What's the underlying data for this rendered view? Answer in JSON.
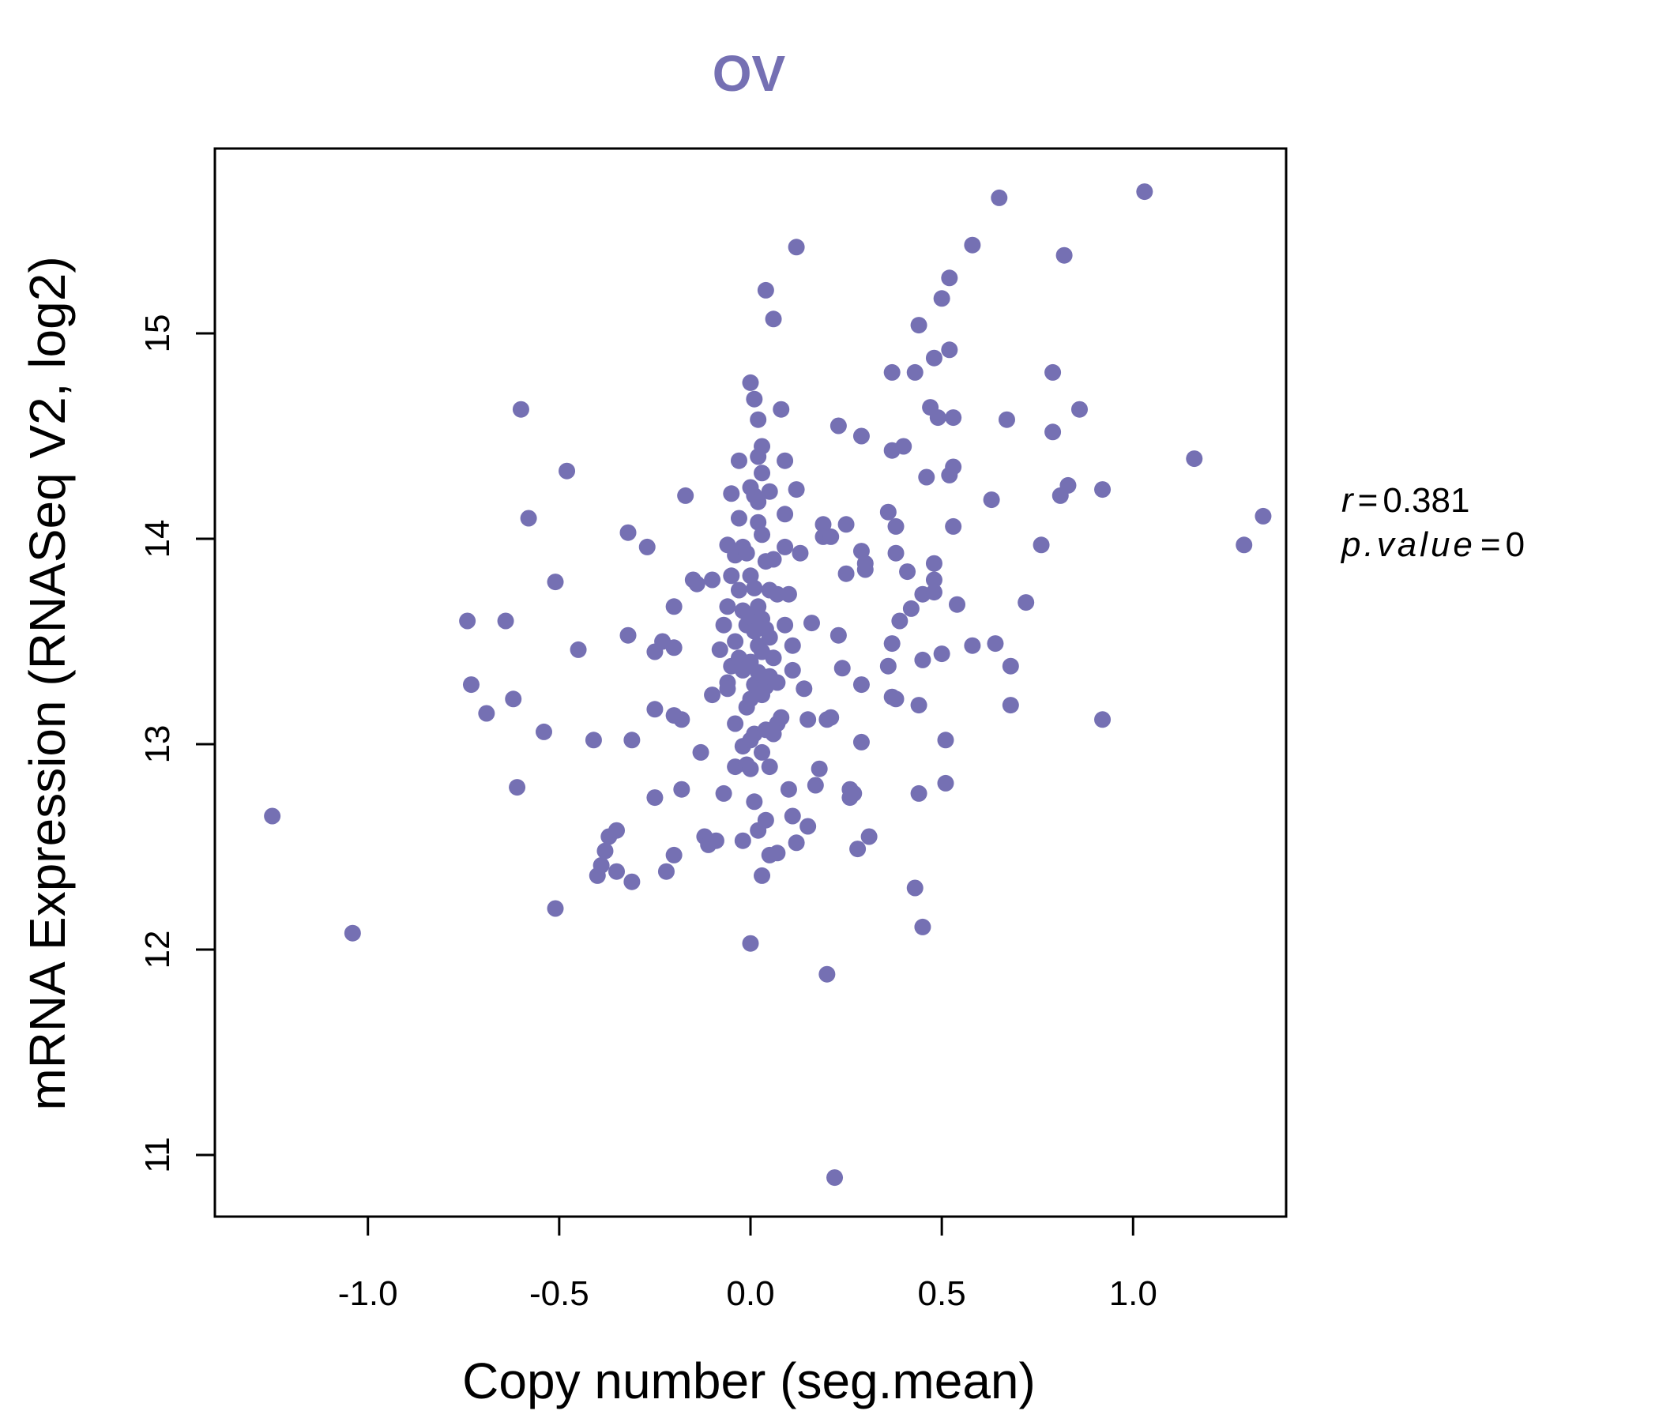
{
  "chart_data": {
    "type": "scatter",
    "title": "OV",
    "xlabel": "Copy number (seg.mean)",
    "ylabel": "mRNA Expression (RNASeq V2, log2)",
    "xlim": [
      -1.4,
      1.4
    ],
    "ylim": [
      10.7,
      15.9
    ],
    "xticks": [
      "-1.0",
      "-0.5",
      "0.0",
      "0.5",
      "1.0"
    ],
    "yticks": [
      "11",
      "12",
      "13",
      "14",
      "15"
    ],
    "grid": false,
    "point_color": "#7570b3",
    "annotations": {
      "r_label": "r",
      "r_value": "0.381",
      "p_label": "p.value",
      "p_value": "0"
    },
    "points": [
      {
        "x": -1.25,
        "y": 12.65
      },
      {
        "x": -1.04,
        "y": 12.08
      },
      {
        "x": -0.74,
        "y": 13.6
      },
      {
        "x": -0.73,
        "y": 13.29
      },
      {
        "x": -0.69,
        "y": 13.15
      },
      {
        "x": -0.64,
        "y": 13.6
      },
      {
        "x": -0.62,
        "y": 13.22
      },
      {
        "x": -0.61,
        "y": 12.79
      },
      {
        "x": -0.6,
        "y": 14.63
      },
      {
        "x": -0.58,
        "y": 14.1
      },
      {
        "x": -0.54,
        "y": 13.06
      },
      {
        "x": -0.51,
        "y": 13.79
      },
      {
        "x": -0.51,
        "y": 12.2
      },
      {
        "x": -0.48,
        "y": 14.33
      },
      {
        "x": -0.45,
        "y": 13.46
      },
      {
        "x": -0.41,
        "y": 13.02
      },
      {
        "x": -0.4,
        "y": 12.36
      },
      {
        "x": -0.39,
        "y": 12.41
      },
      {
        "x": -0.38,
        "y": 12.48
      },
      {
        "x": -0.37,
        "y": 12.55
      },
      {
        "x": -0.35,
        "y": 12.58
      },
      {
        "x": -0.35,
        "y": 12.38
      },
      {
        "x": -0.32,
        "y": 14.03
      },
      {
        "x": -0.32,
        "y": 13.53
      },
      {
        "x": -0.31,
        "y": 13.02
      },
      {
        "x": -0.31,
        "y": 12.33
      },
      {
        "x": -0.27,
        "y": 13.96
      },
      {
        "x": -0.25,
        "y": 13.45
      },
      {
        "x": -0.25,
        "y": 13.17
      },
      {
        "x": -0.25,
        "y": 12.74
      },
      {
        "x": -0.23,
        "y": 13.5
      },
      {
        "x": -0.22,
        "y": 12.38
      },
      {
        "x": -0.2,
        "y": 13.67
      },
      {
        "x": -0.2,
        "y": 13.14
      },
      {
        "x": -0.2,
        "y": 12.46
      },
      {
        "x": -0.2,
        "y": 13.47
      },
      {
        "x": -0.18,
        "y": 13.12
      },
      {
        "x": -0.18,
        "y": 12.78
      },
      {
        "x": -0.17,
        "y": 14.21
      },
      {
        "x": -0.15,
        "y": 13.8
      },
      {
        "x": -0.14,
        "y": 13.78
      },
      {
        "x": -0.13,
        "y": 12.96
      },
      {
        "x": -0.12,
        "y": 12.55
      },
      {
        "x": -0.11,
        "y": 12.51
      },
      {
        "x": -0.1,
        "y": 13.8
      },
      {
        "x": -0.1,
        "y": 13.24
      },
      {
        "x": -0.09,
        "y": 12.53
      },
      {
        "x": -0.08,
        "y": 13.46
      },
      {
        "x": -0.07,
        "y": 13.58
      },
      {
        "x": -0.07,
        "y": 12.76
      },
      {
        "x": -0.06,
        "y": 13.97
      },
      {
        "x": -0.06,
        "y": 13.3
      },
      {
        "x": -0.06,
        "y": 13.27
      },
      {
        "x": -0.06,
        "y": 13.67
      },
      {
        "x": -0.05,
        "y": 14.22
      },
      {
        "x": -0.05,
        "y": 13.82
      },
      {
        "x": -0.05,
        "y": 13.38
      },
      {
        "x": -0.04,
        "y": 13.92
      },
      {
        "x": -0.04,
        "y": 13.5
      },
      {
        "x": -0.04,
        "y": 13.1
      },
      {
        "x": -0.04,
        "y": 12.89
      },
      {
        "x": -0.03,
        "y": 14.38
      },
      {
        "x": -0.03,
        "y": 14.1
      },
      {
        "x": -0.03,
        "y": 13.75
      },
      {
        "x": -0.03,
        "y": 13.42
      },
      {
        "x": -0.02,
        "y": 13.96
      },
      {
        "x": -0.02,
        "y": 13.65
      },
      {
        "x": -0.02,
        "y": 13.36
      },
      {
        "x": -0.02,
        "y": 12.99
      },
      {
        "x": -0.02,
        "y": 12.53
      },
      {
        "x": -0.01,
        "y": 13.93
      },
      {
        "x": -0.01,
        "y": 13.58
      },
      {
        "x": -0.01,
        "y": 13.18
      },
      {
        "x": -0.01,
        "y": 12.9
      },
      {
        "x": 0.0,
        "y": 14.76
      },
      {
        "x": 0.0,
        "y": 14.25
      },
      {
        "x": 0.0,
        "y": 13.82
      },
      {
        "x": 0.0,
        "y": 13.62
      },
      {
        "x": 0.0,
        "y": 13.4
      },
      {
        "x": 0.0,
        "y": 13.22
      },
      {
        "x": 0.0,
        "y": 13.02
      },
      {
        "x": 0.0,
        "y": 12.88
      },
      {
        "x": 0.0,
        "y": 12.03
      },
      {
        "x": 0.01,
        "y": 14.68
      },
      {
        "x": 0.01,
        "y": 14.21
      },
      {
        "x": 0.01,
        "y": 13.76
      },
      {
        "x": 0.01,
        "y": 13.55
      },
      {
        "x": 0.01,
        "y": 13.29
      },
      {
        "x": 0.01,
        "y": 13.05
      },
      {
        "x": 0.01,
        "y": 12.72
      },
      {
        "x": 0.02,
        "y": 14.4
      },
      {
        "x": 0.02,
        "y": 14.18
      },
      {
        "x": 0.02,
        "y": 13.67
      },
      {
        "x": 0.02,
        "y": 13.48
      },
      {
        "x": 0.02,
        "y": 13.35
      },
      {
        "x": 0.02,
        "y": 12.58
      },
      {
        "x": 0.02,
        "y": 14.58
      },
      {
        "x": 0.02,
        "y": 14.08
      },
      {
        "x": 0.03,
        "y": 14.45
      },
      {
        "x": 0.03,
        "y": 14.02
      },
      {
        "x": 0.03,
        "y": 13.61
      },
      {
        "x": 0.03,
        "y": 13.45
      },
      {
        "x": 0.03,
        "y": 13.24
      },
      {
        "x": 0.03,
        "y": 12.36
      },
      {
        "x": 0.03,
        "y": 14.32
      },
      {
        "x": 0.03,
        "y": 12.96
      },
      {
        "x": 0.04,
        "y": 15.21
      },
      {
        "x": 0.04,
        "y": 13.89
      },
      {
        "x": 0.04,
        "y": 13.56
      },
      {
        "x": 0.04,
        "y": 13.28
      },
      {
        "x": 0.04,
        "y": 13.07
      },
      {
        "x": 0.04,
        "y": 12.63
      },
      {
        "x": 0.05,
        "y": 14.23
      },
      {
        "x": 0.05,
        "y": 13.75
      },
      {
        "x": 0.05,
        "y": 13.52
      },
      {
        "x": 0.05,
        "y": 13.33
      },
      {
        "x": 0.05,
        "y": 12.89
      },
      {
        "x": 0.05,
        "y": 12.46
      },
      {
        "x": 0.06,
        "y": 15.07
      },
      {
        "x": 0.06,
        "y": 13.9
      },
      {
        "x": 0.06,
        "y": 13.42
      },
      {
        "x": 0.06,
        "y": 13.05
      },
      {
        "x": 0.07,
        "y": 13.73
      },
      {
        "x": 0.07,
        "y": 13.3
      },
      {
        "x": 0.07,
        "y": 13.1
      },
      {
        "x": 0.07,
        "y": 12.47
      },
      {
        "x": 0.08,
        "y": 14.63
      },
      {
        "x": 0.08,
        "y": 13.13
      },
      {
        "x": 0.09,
        "y": 14.38
      },
      {
        "x": 0.09,
        "y": 14.12
      },
      {
        "x": 0.09,
        "y": 13.96
      },
      {
        "x": 0.09,
        "y": 13.58
      },
      {
        "x": 0.1,
        "y": 13.73
      },
      {
        "x": 0.1,
        "y": 12.78
      },
      {
        "x": 0.11,
        "y": 13.48
      },
      {
        "x": 0.11,
        "y": 13.36
      },
      {
        "x": 0.11,
        "y": 12.65
      },
      {
        "x": 0.12,
        "y": 15.42
      },
      {
        "x": 0.12,
        "y": 14.24
      },
      {
        "x": 0.12,
        "y": 12.52
      },
      {
        "x": 0.13,
        "y": 13.93
      },
      {
        "x": 0.14,
        "y": 13.27
      },
      {
        "x": 0.15,
        "y": 13.12
      },
      {
        "x": 0.15,
        "y": 12.6
      },
      {
        "x": 0.16,
        "y": 13.59
      },
      {
        "x": 0.17,
        "y": 12.8
      },
      {
        "x": 0.18,
        "y": 12.88
      },
      {
        "x": 0.19,
        "y": 14.07
      },
      {
        "x": 0.19,
        "y": 14.01
      },
      {
        "x": 0.2,
        "y": 13.12
      },
      {
        "x": 0.2,
        "y": 11.88
      },
      {
        "x": 0.21,
        "y": 14.01
      },
      {
        "x": 0.21,
        "y": 13.13
      },
      {
        "x": 0.22,
        "y": 10.89
      },
      {
        "x": 0.23,
        "y": 14.55
      },
      {
        "x": 0.23,
        "y": 13.53
      },
      {
        "x": 0.24,
        "y": 13.37
      },
      {
        "x": 0.25,
        "y": 14.07
      },
      {
        "x": 0.25,
        "y": 13.83
      },
      {
        "x": 0.26,
        "y": 12.74
      },
      {
        "x": 0.26,
        "y": 12.78
      },
      {
        "x": 0.27,
        "y": 12.76
      },
      {
        "x": 0.28,
        "y": 12.49
      },
      {
        "x": 0.29,
        "y": 13.94
      },
      {
        "x": 0.29,
        "y": 13.29
      },
      {
        "x": 0.29,
        "y": 13.01
      },
      {
        "x": 0.29,
        "y": 14.5
      },
      {
        "x": 0.3,
        "y": 13.88
      },
      {
        "x": 0.3,
        "y": 13.85
      },
      {
        "x": 0.31,
        "y": 12.55
      },
      {
        "x": 0.36,
        "y": 14.13
      },
      {
        "x": 0.36,
        "y": 13.38
      },
      {
        "x": 0.37,
        "y": 13.23
      },
      {
        "x": 0.37,
        "y": 14.43
      },
      {
        "x": 0.37,
        "y": 13.49
      },
      {
        "x": 0.37,
        "y": 14.81
      },
      {
        "x": 0.38,
        "y": 14.06
      },
      {
        "x": 0.38,
        "y": 13.93
      },
      {
        "x": 0.38,
        "y": 13.22
      },
      {
        "x": 0.39,
        "y": 13.6
      },
      {
        "x": 0.4,
        "y": 14.45
      },
      {
        "x": 0.41,
        "y": 13.84
      },
      {
        "x": 0.42,
        "y": 13.66
      },
      {
        "x": 0.43,
        "y": 14.81
      },
      {
        "x": 0.43,
        "y": 12.3
      },
      {
        "x": 0.44,
        "y": 15.04
      },
      {
        "x": 0.44,
        "y": 13.19
      },
      {
        "x": 0.44,
        "y": 12.76
      },
      {
        "x": 0.45,
        "y": 12.11
      },
      {
        "x": 0.45,
        "y": 13.73
      },
      {
        "x": 0.45,
        "y": 13.41
      },
      {
        "x": 0.46,
        "y": 14.3
      },
      {
        "x": 0.47,
        "y": 14.64
      },
      {
        "x": 0.48,
        "y": 13.88
      },
      {
        "x": 0.48,
        "y": 13.8
      },
      {
        "x": 0.48,
        "y": 13.74
      },
      {
        "x": 0.48,
        "y": 14.88
      },
      {
        "x": 0.49,
        "y": 14.59
      },
      {
        "x": 0.5,
        "y": 15.17
      },
      {
        "x": 0.5,
        "y": 13.44
      },
      {
        "x": 0.51,
        "y": 13.02
      },
      {
        "x": 0.51,
        "y": 12.81
      },
      {
        "x": 0.52,
        "y": 14.92
      },
      {
        "x": 0.52,
        "y": 14.31
      },
      {
        "x": 0.52,
        "y": 15.27
      },
      {
        "x": 0.53,
        "y": 14.59
      },
      {
        "x": 0.53,
        "y": 14.35
      },
      {
        "x": 0.53,
        "y": 14.06
      },
      {
        "x": 0.54,
        "y": 13.68
      },
      {
        "x": 0.58,
        "y": 15.43
      },
      {
        "x": 0.58,
        "y": 13.48
      },
      {
        "x": 0.63,
        "y": 14.19
      },
      {
        "x": 0.64,
        "y": 13.49
      },
      {
        "x": 0.65,
        "y": 15.66
      },
      {
        "x": 0.67,
        "y": 14.58
      },
      {
        "x": 0.68,
        "y": 13.38
      },
      {
        "x": 0.68,
        "y": 13.19
      },
      {
        "x": 0.72,
        "y": 13.69
      },
      {
        "x": 0.76,
        "y": 13.97
      },
      {
        "x": 0.79,
        "y": 14.81
      },
      {
        "x": 0.79,
        "y": 14.52
      },
      {
        "x": 0.81,
        "y": 14.21
      },
      {
        "x": 0.82,
        "y": 15.38
      },
      {
        "x": 0.83,
        "y": 14.26
      },
      {
        "x": 0.86,
        "y": 14.63
      },
      {
        "x": 0.92,
        "y": 14.24
      },
      {
        "x": 0.92,
        "y": 13.12
      },
      {
        "x": 1.03,
        "y": 15.69
      },
      {
        "x": 1.16,
        "y": 14.39
      },
      {
        "x": 1.29,
        "y": 13.97
      },
      {
        "x": 1.34,
        "y": 14.11
      }
    ]
  }
}
